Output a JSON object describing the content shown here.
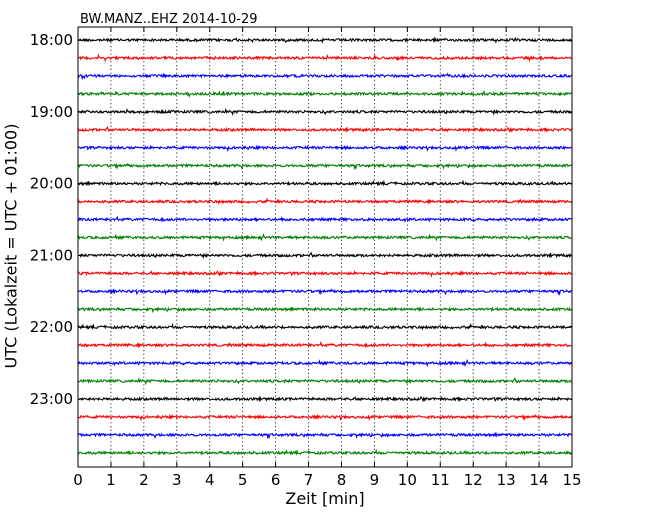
{
  "chart_data": {
    "type": "line",
    "title": "BW.MANZ..EHZ 2014-10-29",
    "xlabel": "Zeit  [min]",
    "ylabel": "UTC (Lokalzeit = UTC + 01:00)",
    "xlim": [
      0,
      15
    ],
    "xticks": [
      "0",
      "1",
      "2",
      "3",
      "4",
      "5",
      "6",
      "7",
      "8",
      "9",
      "10",
      "11",
      "12",
      "13",
      "14",
      "15"
    ],
    "yticks": [
      {
        "label": "18:00",
        "row": 0
      },
      {
        "label": "19:00",
        "row": 4
      },
      {
        "label": "20:00",
        "row": 8
      },
      {
        "label": "21:00",
        "row": 12
      },
      {
        "label": "22:00",
        "row": 16
      },
      {
        "label": "23:00",
        "row": 20
      }
    ],
    "grid": "vertical dotted at each minute",
    "series": [
      {
        "start": "18:00",
        "color": "#000000"
      },
      {
        "start": "18:15",
        "color": "#ff0000"
      },
      {
        "start": "18:30",
        "color": "#0000ff"
      },
      {
        "start": "18:45",
        "color": "#008000"
      },
      {
        "start": "19:00",
        "color": "#000000"
      },
      {
        "start": "19:15",
        "color": "#ff0000"
      },
      {
        "start": "19:30",
        "color": "#0000ff"
      },
      {
        "start": "19:45",
        "color": "#008000"
      },
      {
        "start": "20:00",
        "color": "#000000"
      },
      {
        "start": "20:15",
        "color": "#ff0000"
      },
      {
        "start": "20:30",
        "color": "#0000ff"
      },
      {
        "start": "20:45",
        "color": "#008000"
      },
      {
        "start": "21:00",
        "color": "#000000"
      },
      {
        "start": "21:15",
        "color": "#ff0000"
      },
      {
        "start": "21:30",
        "color": "#0000ff"
      },
      {
        "start": "21:45",
        "color": "#008000"
      },
      {
        "start": "22:00",
        "color": "#000000"
      },
      {
        "start": "22:15",
        "color": "#ff0000"
      },
      {
        "start": "22:30",
        "color": "#0000ff"
      },
      {
        "start": "22:45",
        "color": "#008000"
      },
      {
        "start": "23:00",
        "color": "#000000"
      },
      {
        "start": "23:15",
        "color": "#ff0000"
      },
      {
        "start": "23:30",
        "color": "#0000ff"
      },
      {
        "start": "23:45",
        "color": "#008000"
      }
    ]
  }
}
